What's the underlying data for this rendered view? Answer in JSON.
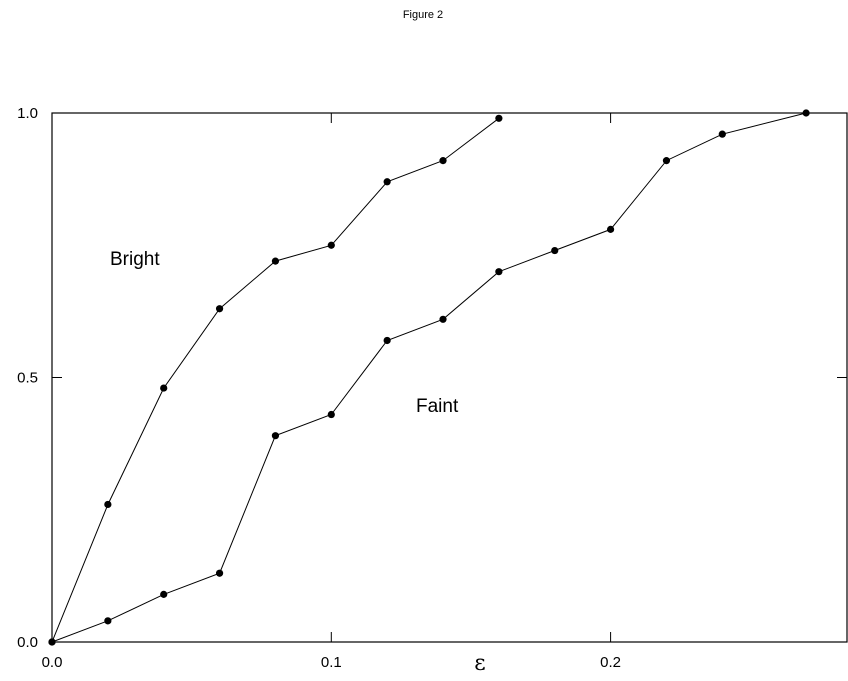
{
  "chart_data": {
    "type": "line",
    "title": "Figure 2",
    "xlabel": "ε",
    "ylabel": "",
    "xlim": [
      0.0,
      0.285
    ],
    "ylim": [
      0.0,
      1.0
    ],
    "xticks": [
      0.0,
      0.1,
      0.2
    ],
    "xtick_labels": [
      "0.0",
      "0.1",
      "0.2"
    ],
    "yticks": [
      0.0,
      0.5,
      1.0
    ],
    "ytick_labels": [
      "0.0",
      "0.5",
      "1.0"
    ],
    "grid": false,
    "series": [
      {
        "name": "Bright",
        "x": [
          0.0,
          0.02,
          0.04,
          0.06,
          0.08,
          0.1,
          0.12,
          0.14,
          0.16
        ],
        "y": [
          0.0,
          0.26,
          0.48,
          0.63,
          0.72,
          0.75,
          0.87,
          0.91,
          0.99
        ]
      },
      {
        "name": "Faint",
        "x": [
          0.0,
          0.02,
          0.04,
          0.06,
          0.08,
          0.1,
          0.12,
          0.14,
          0.16,
          0.18,
          0.2,
          0.22,
          0.24,
          0.27
        ],
        "y": [
          0.0,
          0.04,
          0.09,
          0.13,
          0.39,
          0.43,
          0.57,
          0.61,
          0.7,
          0.74,
          0.78,
          0.91,
          0.96,
          1.0
        ]
      }
    ]
  }
}
